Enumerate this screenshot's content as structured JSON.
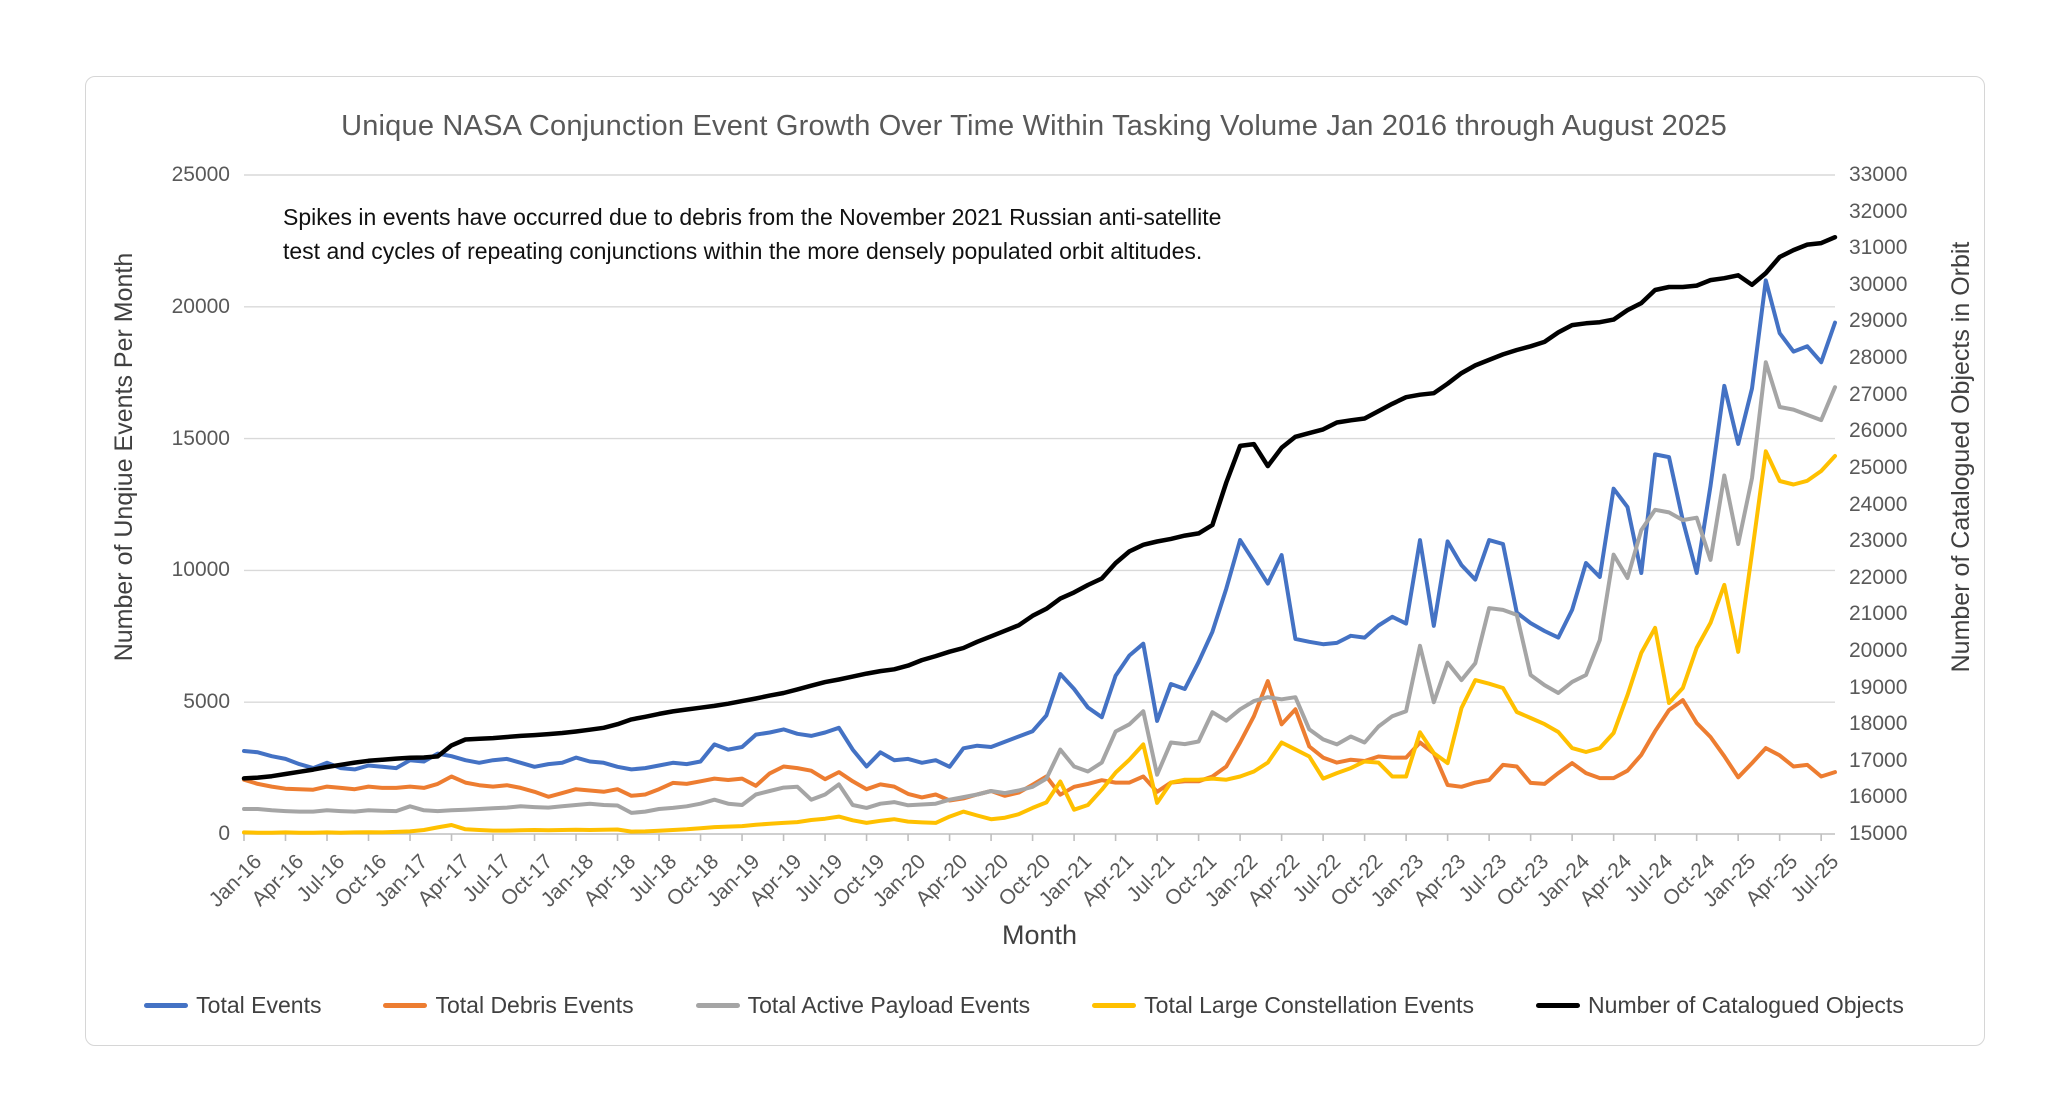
{
  "chart": {
    "title": "Unique NASA Conjunction Event Growth Over Time Within Tasking Volume Jan 2016 through August 2025",
    "annotation_line1": "Spikes in events have occurred due to debris from the November 2021 Russian anti-satellite",
    "annotation_line2": "test and cycles of repeating conjunctions within the more densely populated orbit altitudes.",
    "x_axis_title": "Month",
    "left_axis_title": "Number of Unqiue Events Per Month",
    "right_axis_title": "Number of Catalogued Objects in Orbit"
  },
  "chart_data": {
    "type": "line",
    "grid": true,
    "legend_position": "bottom",
    "left_axis": {
      "min": 0,
      "max": 25000,
      "step": 5000
    },
    "right_axis": {
      "min": 15000,
      "max": 33000,
      "step": 1000
    },
    "x": [
      "Jan-16",
      "Feb-16",
      "Mar-16",
      "Apr-16",
      "May-16",
      "Jun-16",
      "Jul-16",
      "Aug-16",
      "Sep-16",
      "Oct-16",
      "Nov-16",
      "Dec-16",
      "Jan-17",
      "Feb-17",
      "Mar-17",
      "Apr-17",
      "May-17",
      "Jun-17",
      "Jul-17",
      "Aug-17",
      "Sep-17",
      "Oct-17",
      "Nov-17",
      "Dec-17",
      "Jan-18",
      "Feb-18",
      "Mar-18",
      "Apr-18",
      "May-18",
      "Jun-18",
      "Jul-18",
      "Aug-18",
      "Sep-18",
      "Oct-18",
      "Nov-18",
      "Dec-18",
      "Jan-19",
      "Feb-19",
      "Mar-19",
      "Apr-19",
      "May-19",
      "Jun-19",
      "Jul-19",
      "Aug-19",
      "Sep-19",
      "Oct-19",
      "Nov-19",
      "Dec-19",
      "Jan-20",
      "Feb-20",
      "Mar-20",
      "Apr-20",
      "May-20",
      "Jun-20",
      "Jul-20",
      "Aug-20",
      "Sep-20",
      "Oct-20",
      "Nov-20",
      "Dec-20",
      "Jan-21",
      "Feb-21",
      "Mar-21",
      "Apr-21",
      "May-21",
      "Jun-21",
      "Jul-21",
      "Aug-21",
      "Sep-21",
      "Oct-21",
      "Nov-21",
      "Dec-21",
      "Jan-22",
      "Feb-22",
      "Mar-22",
      "Apr-22",
      "May-22",
      "Jun-22",
      "Jul-22",
      "Aug-22",
      "Sep-22",
      "Oct-22",
      "Nov-22",
      "Dec-22",
      "Jan-23",
      "Feb-23",
      "Mar-23",
      "Apr-23",
      "May-23",
      "Jun-23",
      "Jul-23",
      "Aug-23",
      "Sep-23",
      "Oct-23",
      "Nov-23",
      "Dec-23",
      "Jan-24",
      "Feb-24",
      "Mar-24",
      "Apr-24",
      "May-24",
      "Jun-24",
      "Jul-24",
      "Aug-24",
      "Sep-24",
      "Oct-24",
      "Nov-24",
      "Dec-24",
      "Jan-25",
      "Feb-25",
      "Mar-25",
      "Apr-25",
      "May-25",
      "Jun-25",
      "Jul-25",
      "Aug-25"
    ],
    "x_tick_labels": [
      "Jan-16",
      "Apr-16",
      "Jul-16",
      "Oct-16",
      "Jan-17",
      "Apr-17",
      "Jul-17",
      "Oct-17",
      "Jan-18",
      "Apr-18",
      "Jul-18",
      "Oct-18",
      "Jan-19",
      "Apr-19",
      "Jul-19",
      "Oct-19",
      "Jan-20",
      "Apr-20",
      "Jul-20",
      "Oct-20",
      "Jan-21",
      "Apr-21",
      "Jul-21",
      "Oct-21",
      "Jan-22",
      "Apr-22",
      "Jul-22",
      "Oct-22",
      "Jan-23",
      "Apr-23",
      "Jul-23",
      "Oct-23",
      "Jan-24",
      "Apr-24",
      "Jul-24",
      "Oct-24",
      "Jan-25",
      "Apr-25",
      "Jul-25"
    ],
    "series": [
      {
        "name": "Total Events",
        "color": "#4472C4",
        "axis": "left",
        "width": 4,
        "values": [
          3150,
          3100,
          2950,
          2850,
          2650,
          2500,
          2700,
          2500,
          2450,
          2600,
          2550,
          2500,
          2800,
          2750,
          3050,
          2950,
          2800,
          2700,
          2800,
          2850,
          2700,
          2550,
          2650,
          2700,
          2900,
          2750,
          2700,
          2550,
          2450,
          2500,
          2600,
          2700,
          2650,
          2750,
          3400,
          3200,
          3300,
          3770,
          3850,
          3970,
          3800,
          3720,
          3850,
          4030,
          3200,
          2560,
          3100,
          2800,
          2850,
          2700,
          2800,
          2550,
          3250,
          3350,
          3300,
          3500,
          3700,
          3900,
          4500,
          6070,
          5500,
          4800,
          4430,
          6000,
          6770,
          7220,
          4290,
          5690,
          5500,
          6520,
          7670,
          9310,
          11150,
          10340,
          9500,
          10580,
          7400,
          7290,
          7200,
          7250,
          7520,
          7450,
          7910,
          8240,
          7980,
          11150,
          7900,
          11100,
          10200,
          9650,
          11150,
          11000,
          8400,
          8000,
          7700,
          7450,
          8500,
          10280,
          9750,
          13100,
          12400,
          9900,
          14400,
          14300,
          11900,
          9900,
          13200,
          17000,
          14800,
          16900,
          21000,
          19000,
          18300,
          18500,
          17900,
          19400
        ]
      },
      {
        "name": "Total Debris Events",
        "color": "#ED7D31",
        "axis": "left",
        "width": 4,
        "values": [
          2060,
          1900,
          1800,
          1720,
          1700,
          1680,
          1800,
          1750,
          1700,
          1800,
          1750,
          1750,
          1800,
          1750,
          1900,
          2180,
          1950,
          1850,
          1800,
          1850,
          1750,
          1600,
          1410,
          1550,
          1700,
          1650,
          1600,
          1700,
          1450,
          1500,
          1700,
          1940,
          1900,
          2000,
          2100,
          2050,
          2100,
          1830,
          2300,
          2560,
          2500,
          2400,
          2080,
          2350,
          2000,
          1700,
          1880,
          1800,
          1520,
          1390,
          1500,
          1270,
          1350,
          1500,
          1630,
          1450,
          1570,
          1870,
          2180,
          1490,
          1790,
          1900,
          2040,
          1950,
          1950,
          2180,
          1600,
          1950,
          2000,
          2000,
          2180,
          2560,
          3470,
          4470,
          5800,
          4160,
          4730,
          3320,
          2900,
          2710,
          2820,
          2770,
          2940,
          2900,
          2900,
          3470,
          3060,
          1860,
          1790,
          1950,
          2050,
          2620,
          2560,
          1940,
          1900,
          2310,
          2690,
          2310,
          2120,
          2120,
          2400,
          3000,
          3900,
          4700,
          5080,
          4210,
          3680,
          2950,
          2150,
          2690,
          3260,
          2980,
          2560,
          2620,
          2180,
          2350
        ]
      },
      {
        "name": "Total Active Payload Events",
        "color": "#A5A5A5",
        "axis": "left",
        "width": 4,
        "values": [
          950,
          950,
          900,
          870,
          850,
          850,
          900,
          870,
          850,
          900,
          880,
          870,
          1050,
          900,
          870,
          900,
          920,
          950,
          980,
          1000,
          1050,
          1020,
          1000,
          1050,
          1100,
          1150,
          1100,
          1080,
          800,
          850,
          950,
          990,
          1050,
          1150,
          1300,
          1150,
          1100,
          1500,
          1630,
          1760,
          1790,
          1300,
          1500,
          1880,
          1100,
          990,
          1150,
          1210,
          1090,
          1120,
          1150,
          1300,
          1400,
          1500,
          1630,
          1550,
          1650,
          1790,
          2100,
          3200,
          2560,
          2370,
          2710,
          3890,
          4160,
          4660,
          2250,
          3470,
          3410,
          3510,
          4620,
          4300,
          4730,
          5040,
          5190,
          5110,
          5190,
          3970,
          3590,
          3400,
          3700,
          3470,
          4080,
          4470,
          4660,
          7140,
          5000,
          6500,
          5840,
          6480,
          8570,
          8500,
          8310,
          6030,
          5650,
          5350,
          5770,
          6030,
          7360,
          10600,
          9710,
          11530,
          12300,
          12200,
          11910,
          12000,
          10400,
          13600,
          11000,
          13500,
          17900,
          16200,
          16100,
          15900,
          15700,
          16950
        ]
      },
      {
        "name": "Total Large Constellation Events",
        "color": "#FFC000",
        "axis": "left",
        "width": 4,
        "values": [
          60,
          50,
          50,
          60,
          50,
          50,
          60,
          50,
          60,
          70,
          60,
          80,
          100,
          150,
          250,
          340,
          180,
          150,
          130,
          130,
          140,
          150,
          140,
          150,
          160,
          150,
          160,
          170,
          90,
          100,
          120,
          150,
          180,
          220,
          260,
          280,
          300,
          350,
          390,
          420,
          450,
          530,
          580,
          660,
          520,
          420,
          500,
          560,
          470,
          440,
          420,
          660,
          850,
          700,
          560,
          620,
          750,
          990,
          1200,
          1990,
          920,
          1100,
          1680,
          2330,
          2820,
          3400,
          1180,
          1950,
          2060,
          2060,
          2100,
          2060,
          2180,
          2370,
          2710,
          3470,
          3210,
          2940,
          2100,
          2310,
          2500,
          2750,
          2710,
          2180,
          2180,
          3860,
          3070,
          2690,
          4780,
          5840,
          5700,
          5540,
          4630,
          4400,
          4170,
          3870,
          3260,
          3110,
          3260,
          3830,
          5270,
          6870,
          7820,
          4970,
          5540,
          7060,
          8010,
          9450,
          6910,
          10660,
          14520,
          13390,
          13260,
          13400,
          13770,
          14340
        ]
      },
      {
        "name": "Number of Catalogued Objects",
        "color": "#000000",
        "axis": "right",
        "width": 4.5,
        "values": [
          16520,
          16540,
          16580,
          16640,
          16700,
          16760,
          16830,
          16890,
          16950,
          17000,
          17030,
          17060,
          17080,
          17090,
          17120,
          17420,
          17580,
          17600,
          17620,
          17650,
          17680,
          17700,
          17730,
          17760,
          17800,
          17850,
          17900,
          18000,
          18130,
          18200,
          18280,
          18350,
          18400,
          18450,
          18500,
          18560,
          18630,
          18700,
          18780,
          18850,
          18950,
          19050,
          19150,
          19220,
          19300,
          19380,
          19450,
          19500,
          19600,
          19750,
          19860,
          19980,
          20080,
          20250,
          20400,
          20550,
          20700,
          20960,
          21150,
          21430,
          21600,
          21800,
          21980,
          22400,
          22720,
          22900,
          22990,
          23060,
          23150,
          23210,
          23440,
          24600,
          25600,
          25650,
          25050,
          25550,
          25850,
          25950,
          26050,
          26240,
          26300,
          26350,
          26550,
          26750,
          26930,
          27000,
          27040,
          27300,
          27590,
          27800,
          27950,
          28100,
          28220,
          28320,
          28440,
          28700,
          28900,
          28950,
          28980,
          29050,
          29310,
          29500,
          29860,
          29940,
          29940,
          29980,
          30130,
          30180,
          30260,
          30000,
          30320,
          30760,
          30950,
          31100,
          31140,
          31300
        ]
      }
    ]
  }
}
